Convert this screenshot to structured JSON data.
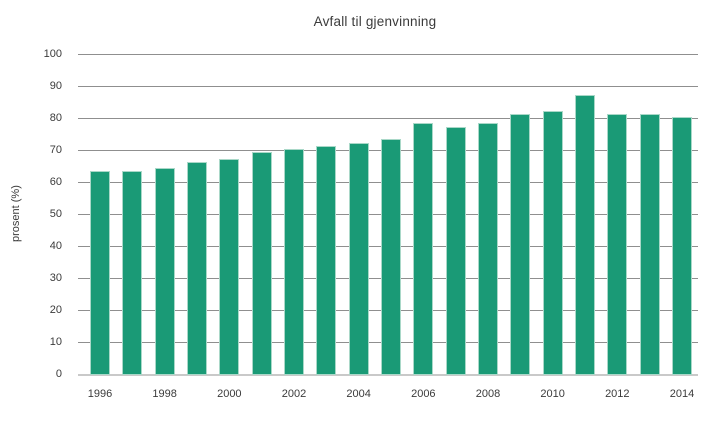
{
  "chart_data": {
    "type": "bar",
    "title": "Avfall til gjenvinning",
    "ylabel": "prosent (%)",
    "xlabel": "",
    "categories": [
      1996,
      1997,
      1998,
      1999,
      2000,
      2001,
      2002,
      2003,
      2004,
      2005,
      2006,
      2007,
      2008,
      2009,
      2010,
      2011,
      2012,
      2013,
      2014
    ],
    "values": [
      63,
      63,
      64,
      66,
      67,
      69,
      70,
      71,
      72,
      73,
      78,
      77,
      78,
      81,
      82,
      87,
      81,
      81,
      80
    ],
    "ylim": [
      0,
      100
    ],
    "yticks": [
      0,
      10,
      20,
      30,
      40,
      50,
      60,
      70,
      80,
      90,
      100
    ],
    "x_tick_labels": [
      "1996",
      "1998",
      "2000",
      "2002",
      "2004",
      "2006",
      "2008",
      "2010",
      "2012",
      "2014"
    ],
    "grid": "horizontal",
    "legend": "none",
    "colors": {
      "bar": "#1A9A76",
      "bar_edge": "#A9D8C8",
      "gridline": "#8F8F8F",
      "baseline": "#C9C9C9",
      "text": "#3B3B3B"
    }
  }
}
